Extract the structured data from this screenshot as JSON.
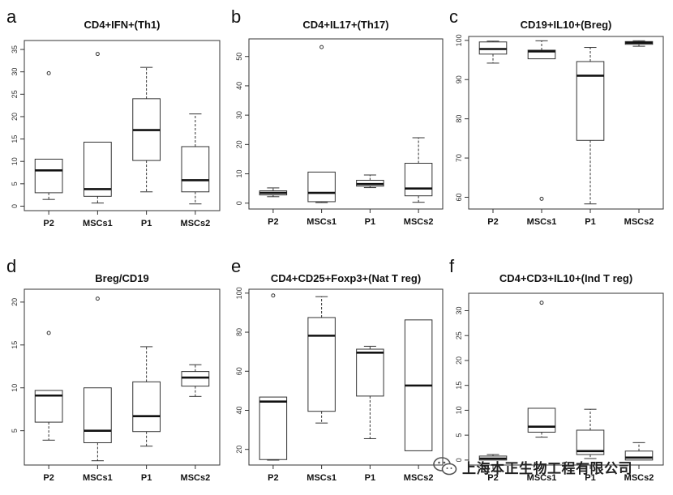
{
  "figure": {
    "categories": [
      "P2",
      "MSCs1",
      "P1",
      "MSCs2"
    ],
    "watermark": "上海本正生物工程有限公司",
    "watermark_icon": "wechat-icon"
  },
  "chart_data": [
    {
      "type": "boxplot",
      "letter": "a",
      "title": "CD4+IFN+(Th1)",
      "ylim": [
        -1,
        37
      ],
      "yticks": [
        0,
        5,
        10,
        15,
        20,
        25,
        30,
        35
      ],
      "boxes": [
        {
          "min": 1.5,
          "q1": 3,
          "median": 8,
          "q3": 10.5,
          "max": 10.5,
          "outliers": [
            29.7
          ]
        },
        {
          "min": 0.7,
          "q1": 2.2,
          "median": 3.8,
          "q3": 14.3,
          "max": 14.3,
          "outliers": [
            34
          ]
        },
        {
          "min": 3.2,
          "q1": 10.2,
          "median": 17,
          "q3": 24,
          "max": 31,
          "outliers": []
        },
        {
          "min": 0.5,
          "q1": 3.2,
          "median": 5.8,
          "q3": 13.3,
          "max": 20.6,
          "outliers": []
        }
      ]
    },
    {
      "type": "boxplot",
      "letter": "b",
      "title": "CD4+IL17+(Th17)",
      "ylim": [
        -2,
        56
      ],
      "yticks": [
        0,
        10,
        20,
        30,
        40,
        50
      ],
      "boxes": [
        {
          "min": 2.2,
          "q1": 2.8,
          "median": 3.5,
          "q3": 4.2,
          "max": 5.2,
          "outliers": []
        },
        {
          "min": 0.2,
          "q1": 0.5,
          "median": 3.5,
          "q3": 10.6,
          "max": 10.6,
          "outliers": [
            53.2
          ]
        },
        {
          "min": 5.3,
          "q1": 5.8,
          "median": 6.5,
          "q3": 7.8,
          "max": 9.6,
          "outliers": []
        },
        {
          "min": 0.3,
          "q1": 2.5,
          "median": 5,
          "q3": 13.6,
          "max": 22.3,
          "outliers": []
        }
      ]
    },
    {
      "type": "boxplot",
      "letter": "c",
      "title": "CD19+IL10+(Breg)",
      "ylim": [
        57,
        101
      ],
      "yticks": [
        60,
        70,
        80,
        90,
        100
      ],
      "boxes": [
        {
          "min": 94.2,
          "q1": 96.5,
          "median": 97.8,
          "q3": 99.6,
          "max": 99.8,
          "outliers": []
        },
        {
          "min": 95.3,
          "q1": 95.3,
          "median": 97.2,
          "q3": 97.5,
          "max": 99.9,
          "outliers": [
            59.6
          ]
        },
        {
          "min": 58.3,
          "q1": 74.5,
          "median": 91,
          "q3": 94.6,
          "max": 98.2,
          "outliers": []
        },
        {
          "min": 98.5,
          "q1": 99,
          "median": 99.4,
          "q3": 99.7,
          "max": 99.9,
          "outliers": []
        }
      ]
    },
    {
      "type": "boxplot",
      "letter": "d",
      "title": "Breg/CD19",
      "ylim": [
        1,
        21.5
      ],
      "yticks": [
        5,
        10,
        15,
        20
      ],
      "boxes": [
        {
          "min": 3.9,
          "q1": 6,
          "median": 9.1,
          "q3": 9.7,
          "max": 9.7,
          "outliers": [
            16.4
          ]
        },
        {
          "min": 1.5,
          "q1": 3.6,
          "median": 5,
          "q3": 10,
          "max": 10,
          "outliers": [
            20.4
          ]
        },
        {
          "min": 3.2,
          "q1": 4.9,
          "median": 6.7,
          "q3": 10.7,
          "max": 14.8,
          "outliers": []
        },
        {
          "min": 9,
          "q1": 10.2,
          "median": 11.2,
          "q3": 11.9,
          "max": 12.7,
          "outliers": []
        }
      ]
    },
    {
      "type": "boxplot",
      "letter": "e",
      "title": "CD4+CD25+Foxp3+(Nat T reg)",
      "ylim": [
        12,
        102
      ],
      "yticks": [
        20,
        40,
        60,
        80,
        100
      ],
      "boxes": [
        {
          "min": 14.5,
          "q1": 14.8,
          "median": 44.5,
          "q3": 46.8,
          "max": 46.8,
          "outliers": [
            98.8
          ]
        },
        {
          "min": 33.5,
          "q1": 39.5,
          "median": 78.2,
          "q3": 87.5,
          "max": 98.2,
          "outliers": []
        },
        {
          "min": 25.5,
          "q1": 47.3,
          "median": 69.5,
          "q3": 71.3,
          "max": 72.8,
          "outliers": []
        },
        {
          "min": 19.3,
          "q1": 19.3,
          "median": 52.7,
          "q3": 86.3,
          "max": 86.3,
          "outliers": []
        }
      ]
    },
    {
      "type": "boxplot",
      "letter": "f",
      "title": "CD4+CD3+IL10+(Ind T reg)",
      "ylim": [
        -1,
        33.5
      ],
      "yticks": [
        0,
        5,
        10,
        15,
        20,
        25,
        30
      ],
      "boxes": [
        {
          "min": 0,
          "q1": 0,
          "median": 0.3,
          "q3": 0.8,
          "max": 1.1,
          "outliers": []
        },
        {
          "min": 4.6,
          "q1": 5.6,
          "median": 6.7,
          "q3": 10.4,
          "max": 10.4,
          "outliers": [
            31.6
          ]
        },
        {
          "min": 0.3,
          "q1": 1.1,
          "median": 1.8,
          "q3": 6,
          "max": 10.2,
          "outliers": []
        },
        {
          "min": 0,
          "q1": 0,
          "median": 0.5,
          "q3": 1.8,
          "max": 3.5,
          "outliers": []
        }
      ]
    }
  ]
}
